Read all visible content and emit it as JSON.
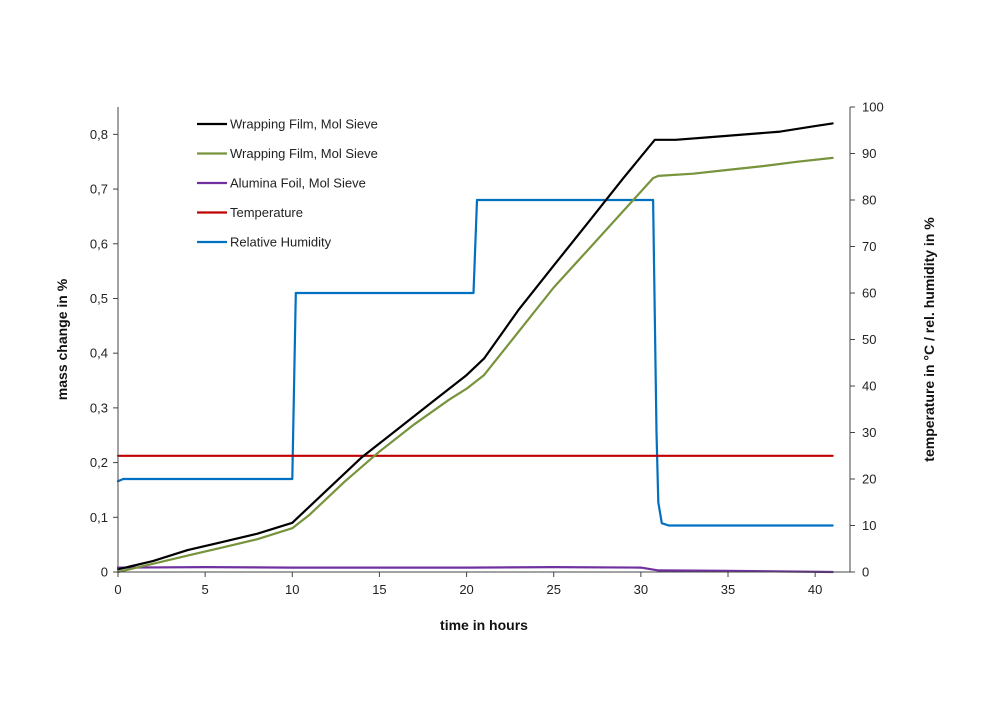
{
  "chart_data": {
    "type": "line",
    "xlabel": "time in hours",
    "ylabel_left": "mass change in %",
    "ylabel_right": "temperature in °C / rel. humidity in %",
    "xlim": [
      0,
      42
    ],
    "ylim_left": [
      0,
      0.85
    ],
    "ylim_right": [
      0,
      100
    ],
    "x_ticks": [
      0,
      5,
      10,
      15,
      20,
      25,
      30,
      35,
      40
    ],
    "x_tick_labels": [
      "0",
      "5",
      "10",
      "15",
      "20",
      "25",
      "30",
      "35",
      "40"
    ],
    "y_left_ticks": [
      0,
      0.1,
      0.2,
      0.3,
      0.4,
      0.5,
      0.6,
      0.7,
      0.8
    ],
    "y_left_tick_labels": [
      "0",
      "0,1",
      "0,2",
      "0,3",
      "0,4",
      "0,5",
      "0,6",
      "0,7",
      "0,8"
    ],
    "y_right_ticks": [
      0,
      10,
      20,
      30,
      40,
      50,
      60,
      70,
      80,
      90,
      100
    ],
    "y_right_tick_labels": [
      "0",
      "10",
      "20",
      "30",
      "40",
      "50",
      "60",
      "70",
      "80",
      "90",
      "100"
    ],
    "grid": false,
    "legend_position": "top-left",
    "series": [
      {
        "name": "Wrapping Film, Mol Sieve",
        "color": "#000000",
        "axis": "left",
        "points": [
          [
            0,
            0.005
          ],
          [
            2,
            0.02
          ],
          [
            4,
            0.04
          ],
          [
            6,
            0.055
          ],
          [
            8,
            0.07
          ],
          [
            10,
            0.09
          ],
          [
            10.5,
            0.105
          ],
          [
            12,
            0.15
          ],
          [
            14,
            0.21
          ],
          [
            16,
            0.26
          ],
          [
            18,
            0.31
          ],
          [
            20,
            0.36
          ],
          [
            21,
            0.39
          ],
          [
            23,
            0.48
          ],
          [
            25,
            0.56
          ],
          [
            27,
            0.64
          ],
          [
            29,
            0.72
          ],
          [
            30.8,
            0.79
          ],
          [
            32,
            0.79
          ],
          [
            34,
            0.795
          ],
          [
            36,
            0.8
          ],
          [
            38,
            0.805
          ],
          [
            40,
            0.815
          ],
          [
            41,
            0.82
          ]
        ]
      },
      {
        "name": "Wrapping Film, Mol Sieve",
        "color": "#77933c",
        "axis": "left",
        "points": [
          [
            0,
            0.0
          ],
          [
            2,
            0.015
          ],
          [
            4,
            0.03
          ],
          [
            6,
            0.045
          ],
          [
            8,
            0.06
          ],
          [
            10,
            0.08
          ],
          [
            11,
            0.105
          ],
          [
            13,
            0.165
          ],
          [
            15,
            0.22
          ],
          [
            17,
            0.27
          ],
          [
            19,
            0.315
          ],
          [
            20,
            0.335
          ],
          [
            21,
            0.36
          ],
          [
            23,
            0.44
          ],
          [
            25,
            0.52
          ],
          [
            27,
            0.59
          ],
          [
            29,
            0.66
          ],
          [
            30.7,
            0.72
          ],
          [
            31,
            0.724
          ],
          [
            33,
            0.728
          ],
          [
            35,
            0.735
          ],
          [
            37,
            0.742
          ],
          [
            39,
            0.75
          ],
          [
            41,
            0.757
          ]
        ]
      },
      {
        "name": "Alumina Foil, Mol Sieve",
        "color": "#7030a0",
        "axis": "left",
        "points": [
          [
            0,
            0.008
          ],
          [
            5,
            0.009
          ],
          [
            10,
            0.008
          ],
          [
            15,
            0.008
          ],
          [
            20,
            0.008
          ],
          [
            25,
            0.009
          ],
          [
            30,
            0.008
          ],
          [
            31,
            0.003
          ],
          [
            35,
            0.002
          ],
          [
            41,
            0.0
          ]
        ]
      },
      {
        "name": "Temperature",
        "color": "#c00000",
        "axis": "right",
        "points": [
          [
            0,
            25
          ],
          [
            10,
            25
          ],
          [
            20,
            25
          ],
          [
            30,
            25
          ],
          [
            41,
            25
          ]
        ]
      },
      {
        "name": "Relative Humidity",
        "color": "#0070c0",
        "axis": "right",
        "points": [
          [
            0,
            19.5
          ],
          [
            0.3,
            20
          ],
          [
            10,
            20
          ],
          [
            10.2,
            60
          ],
          [
            20.4,
            60
          ],
          [
            20.6,
            80
          ],
          [
            30.7,
            80
          ],
          [
            30.9,
            30
          ],
          [
            31.0,
            15
          ],
          [
            31.2,
            10.5
          ],
          [
            31.6,
            10
          ],
          [
            41,
            10
          ]
        ]
      }
    ]
  }
}
